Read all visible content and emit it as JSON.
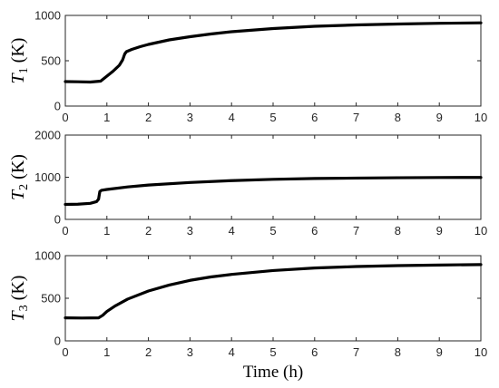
{
  "chart_data": [
    {
      "type": "line",
      "ylabel": "T1 (K)",
      "ylabel_symbol": "T",
      "ylabel_subscript": "1",
      "ylabel_unit": "(K)",
      "xlim": [
        0,
        10
      ],
      "ylim": [
        0,
        1000
      ],
      "xticks": [
        0,
        1,
        2,
        3,
        4,
        5,
        6,
        7,
        8,
        9,
        10
      ],
      "yticks": [
        0,
        500,
        1000
      ],
      "grid": false,
      "series": [
        {
          "x": [
            0,
            0.3,
            0.6,
            0.85,
            1.0,
            1.15,
            1.3,
            1.38,
            1.43,
            1.47,
            1.6,
            1.8,
            2.0,
            2.5,
            3.0,
            3.5,
            4.0,
            5.0,
            6.0,
            7.0,
            8.0,
            9.0,
            10.0
          ],
          "y": [
            270,
            268,
            265,
            275,
            330,
            385,
            450,
            510,
            575,
            600,
            625,
            655,
            680,
            730,
            765,
            795,
            820,
            855,
            880,
            895,
            905,
            913,
            918
          ]
        }
      ]
    },
    {
      "type": "line",
      "ylabel": "T2 (K)",
      "ylabel_symbol": "T",
      "ylabel_subscript": "2",
      "ylabel_unit": "(K)",
      "xlim": [
        0,
        10
      ],
      "ylim": [
        0,
        2000
      ],
      "xticks": [
        0,
        1,
        2,
        3,
        4,
        5,
        6,
        7,
        8,
        9,
        10
      ],
      "yticks": [
        0,
        1000,
        2000
      ],
      "grid": false,
      "series": [
        {
          "x": [
            0,
            0.3,
            0.6,
            0.75,
            0.8,
            0.83,
            0.87,
            1.0,
            1.5,
            2.0,
            3.0,
            4.0,
            5.0,
            6.0,
            7.0,
            8.0,
            9.0,
            10.0
          ],
          "y": [
            355,
            360,
            380,
            420,
            480,
            660,
            690,
            710,
            770,
            815,
            875,
            920,
            950,
            970,
            980,
            988,
            993,
            995
          ]
        }
      ]
    },
    {
      "type": "line",
      "ylabel": "T3 (K)",
      "ylabel_symbol": "T",
      "ylabel_subscript": "3",
      "ylabel_unit": "(K)",
      "xlabel": "Time (h)",
      "xlim": [
        0,
        10
      ],
      "ylim": [
        0,
        1000
      ],
      "xticks": [
        0,
        1,
        2,
        3,
        4,
        5,
        6,
        7,
        8,
        9,
        10
      ],
      "yticks": [
        0,
        500,
        1000
      ],
      "grid": false,
      "series": [
        {
          "x": [
            0,
            0.4,
            0.8,
            0.9,
            1.0,
            1.2,
            1.5,
            2.0,
            2.5,
            3.0,
            3.5,
            4.0,
            5.0,
            6.0,
            7.0,
            8.0,
            9.0,
            10.0
          ],
          "y": [
            270,
            268,
            270,
            300,
            345,
            410,
            490,
            585,
            655,
            710,
            750,
            780,
            825,
            855,
            872,
            883,
            890,
            895
          ]
        }
      ]
    }
  ]
}
